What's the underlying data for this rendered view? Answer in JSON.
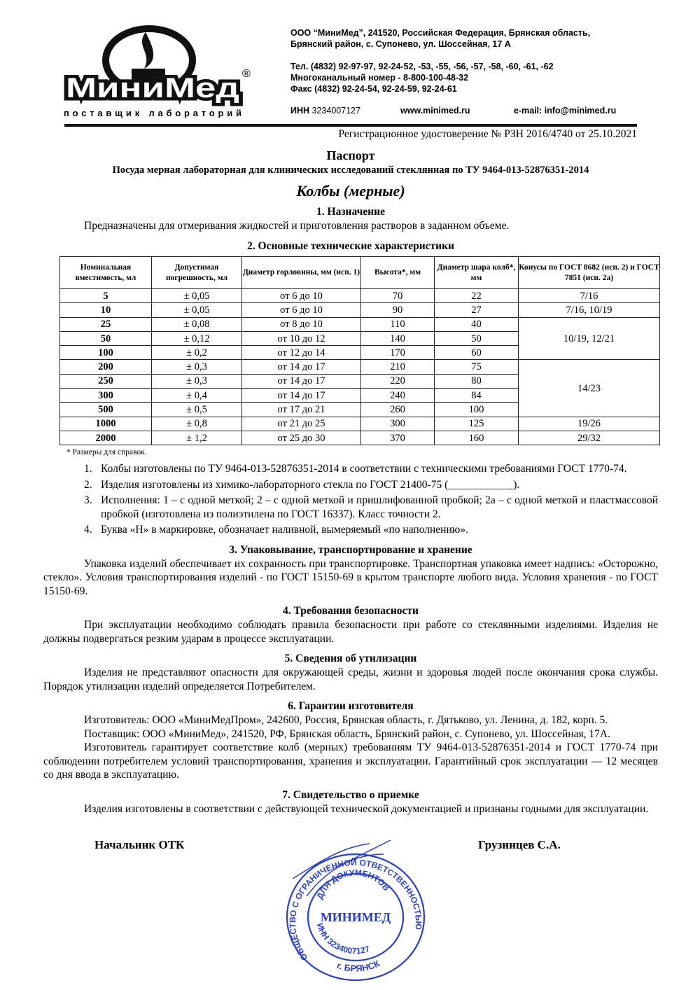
{
  "letterhead": {
    "logo_text": "МиниМед",
    "logo_tagline": "поставщик лабораторий",
    "logo_registered": "®",
    "address_line1": "ООО “МиниМед”, 241520, Российская Федерация, Брянская область,",
    "address_line2": "Брянский район, с. Супонево, ул. Шоссейная, 17 А",
    "phone": "Тел. (4832) 92-97-97, 92-24-52, -53, -55, -56, -57, -58, -60, -61, -62",
    "multichannel": "Многоканальный номер - 8-800-100-48-32",
    "fax": "Факс (4832) 92-24-54, 92-24-59, 92-24-61",
    "inn_label": "ИНН",
    "inn": "3234007127",
    "website": "www.minimed.ru",
    "email": "e-mail: info@minimed.ru"
  },
  "registration": "Регистрационное удостоверение № РЗН 2016/4740 от 25.10.2021",
  "title": "Паспорт",
  "subtitle": "Посуда мерная лабораторная для клинических исследований стеклянная по ТУ 9464-013-52876351-2014",
  "product": "Колбы (мерные)",
  "sections": {
    "s1": {
      "heading": "1.  Назначение",
      "text": "Предназначены для отмеривания жидкостей и приготовления растворов в заданном объеме."
    },
    "s2": {
      "heading": "2.  Основные технические характеристики"
    },
    "s3": {
      "heading": "3.  Упаковывание, транспортирование и хранение",
      "text": "Упаковка изделий обеспечивает их сохранность при транспортировке. Транспортная упаковка имеет надпись: «Осторожно, стекло». Условия транспортирования изделий - по ГОСТ 15150-69 в крытом транспорте любого вида. Условия хранения - по ГОСТ 15150-69."
    },
    "s4": {
      "heading": "4.  Требования безопасности",
      "text": "При эксплуатации необходимо соблюдать правила безопасности при работе со стеклянными изделиями. Изделия не должны подвергаться резким ударам в процессе эксплуатации."
    },
    "s5": {
      "heading": "5.  Сведения об утилизации",
      "text": "Изделия не представляют опасности для окружающей среды, жизни и здоровья людей после окончания срока службы. Порядок утилизации изделий определяется Потребителем."
    },
    "s6": {
      "heading": "6.  Гарантии изготовителя",
      "manufacturer": "Изготовитель: ООО «МиниМедПром», 242600, Россия, Брянская область, г. Дятьково, ул. Ленина, д. 182, корп. 5.",
      "supplier": "Поставщик: ООО «МиниМед», 241520, РФ, Брянская область, Брянский район, с. Супонево, ул. Шоссейная, 17А.",
      "warranty": "Изготовитель гарантирует соответствие колб (мерных) требованиям ТУ 9464-013-52876351-2014 и ГОСТ 1770-74 при соблюдении потребителем условий транспортирования, хранения и эксплуатации. Гарантийный срок эксплуатации — 12 месяцев со дня ввода в эксплуатацию."
    },
    "s7": {
      "heading": "7.  Свидетельство о приемке",
      "text": "Изделия изготовлены в соответствии с действующей технической документацией и признаны годными для эксплуатации."
    }
  },
  "table": {
    "headers": [
      "Номинальная вместимость, мл",
      "Допустимая погрешность, мл",
      "Диаметр горловины, мм (исп. 1)",
      "Высота*, мм",
      "Диаметр шара колб*, мм",
      "Конусы по ГОСТ 8682 (исп. 2) и ГОСТ 7851 (исп. 2а)"
    ],
    "rows": [
      [
        "5",
        "± 0,05",
        "от 6 до 10",
        "70",
        "22"
      ],
      [
        "10",
        "± 0,05",
        "от 6 до 10",
        "90",
        "27"
      ],
      [
        "25",
        "± 0,08",
        "от 8 до 10",
        "110",
        "40"
      ],
      [
        "50",
        "± 0,12",
        "от 10 до 12",
        "140",
        "50"
      ],
      [
        "100",
        "± 0,2",
        "от 12 до 14",
        "170",
        "60"
      ],
      [
        "200",
        "± 0,3",
        "от 14 до 17",
        "210",
        "75"
      ],
      [
        "250",
        "± 0,3",
        "от 14 до 17",
        "220",
        "80"
      ],
      [
        "300",
        "± 0,4",
        "от 14 до 17",
        "240",
        "84"
      ],
      [
        "500",
        "± 0,5",
        "от 17 до 21",
        "260",
        "100"
      ],
      [
        "1000",
        "± 0,8",
        "от 21 до 25",
        "300",
        "125"
      ],
      [
        "2000",
        "± 1,2",
        "от 25 до 30",
        "370",
        "160"
      ]
    ],
    "cones": [
      "7/16",
      "7/16, 10/19",
      "10/19, 12/21",
      "14/23",
      "19/26",
      "29/32"
    ],
    "footnote": "* Размеры для справок."
  },
  "notes": [
    "Колбы изготовлены по ТУ 9464-013-52876351-2014 в соответствии с техническими требованиями ГОСТ 1770-74.",
    "Изделия изготовлены из химико-лабораторного стекла по ГОСТ 21400-75 (____________).",
    "Исполнения: 1 – с одной меткой; 2 – с одной меткой и пришлифованной пробкой; 2а – с одной меткой и пластмассовой пробкой (изготовлена из полиэтилена по ГОСТ 16337). Класс точности 2.",
    "Буква «Н» в маркировке, обозначает наливной, вымеряемый «по наполнению»."
  ],
  "signature": {
    "role": "Начальник ОТК",
    "name": "Грузинцев С.А."
  },
  "stamp": {
    "outer": "ОБЩЕСТВО С ОГРАНИЧЕННОЙ ОТВЕТСТВЕННОСТЬЮ",
    "inner": "ДЛЯ ДОКУМЕНТОВ",
    "center": "МИНИМЕД",
    "inn": "ИНН 3234007127",
    "city": "г. БРЯНСК",
    "color": "#2a3fc8"
  }
}
